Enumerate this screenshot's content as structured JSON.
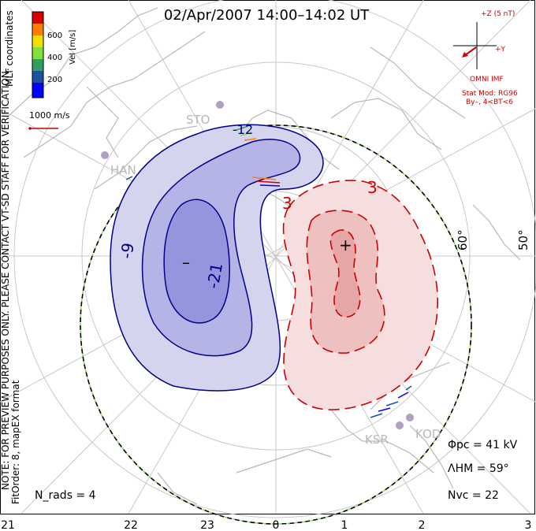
{
  "title": "02/Apr/2007 14:00–14:02 UT",
  "coordinate_label": "MLT coordinates",
  "velocity_scale": {
    "label": "Vel [m/s]",
    "ticks": [
      "600",
      "400",
      "200"
    ],
    "colors": [
      "#d40000",
      "#ff8000",
      "#f0e000",
      "#80e040",
      "#30a060",
      "#2050a0",
      "#0000ff"
    ]
  },
  "reference_vector": {
    "label": "1000 m/s",
    "color": "#cc0000"
  },
  "imf": {
    "z_label": "+Z (5 nT)",
    "y_label": "+Y",
    "model_label": "OMNI IMF",
    "stat_mod": "Stat Mod: RG96",
    "conditions": "By–, 4<BT<6",
    "color": "#cc0000"
  },
  "watermark": "NOTE: FOR PREVIEW PURPOSES ONLY. PLEASE CONTACT VT-SD STAFF FOR VERIFICATION.",
  "fit_info": "FitOrder: 8, mapEX format",
  "stats": {
    "n_rads": "N_rads = 4",
    "phi_pc": "Φpc = 41 kV",
    "lambda_hm": "ΛHM = 59°",
    "n_vc": "Nvc = 22"
  },
  "radars": [
    "STO",
    "HAN",
    "KSR",
    "KOD"
  ],
  "latitude_labels": [
    "60°",
    "50°"
  ],
  "contours": {
    "negative": [
      "-9",
      "-21",
      "-12"
    ],
    "positive": [
      "3",
      "3"
    ],
    "min_symbol": "–",
    "max_symbol": "+",
    "negative_color": "#00008b",
    "positive_color": "#cc0000"
  },
  "mlt_axis": [
    "21",
    "22",
    "23",
    "0",
    "1",
    "2",
    "3"
  ]
}
